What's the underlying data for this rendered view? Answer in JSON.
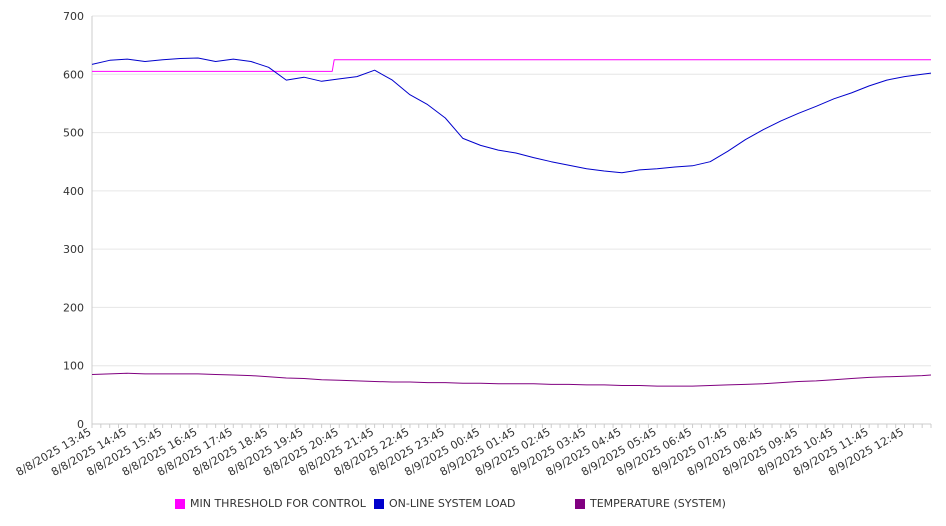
{
  "chart_data": {
    "type": "line",
    "title": "",
    "xlabel": "",
    "ylabel": "",
    "ylim": [
      0,
      700
    ],
    "yticks": [
      0,
      100,
      200,
      300,
      400,
      500,
      600,
      700
    ],
    "grid": true,
    "legend_position": "bottom",
    "x_tick_labels": [
      "8/8/2025 13:45",
      "8/8/2025 14:45",
      "8/8/2025 15:45",
      "8/8/2025 16:45",
      "8/8/2025 17:45",
      "8/8/2025 18:45",
      "8/8/2025 19:45",
      "8/8/2025 20:45",
      "8/8/2025 21:45",
      "8/8/2025 22:45",
      "8/8/2025 23:45",
      "8/9/2025 00:45",
      "8/9/2025 01:45",
      "8/9/2025 02:45",
      "8/9/2025 03:45",
      "8/9/2025 04:45",
      "8/9/2025 05:45",
      "8/9/2025 06:45",
      "8/9/2025 07:45",
      "8/9/2025 08:45",
      "8/9/2025 09:45",
      "8/9/2025 10:45",
      "8/9/2025 11:45",
      "8/9/2025 12:45"
    ],
    "x": [
      "8/8/2025 13:45",
      "8/8/2025 14:15",
      "8/8/2025 14:45",
      "8/8/2025 15:15",
      "8/8/2025 15:45",
      "8/8/2025 16:15",
      "8/8/2025 16:45",
      "8/8/2025 17:15",
      "8/8/2025 17:45",
      "8/8/2025 18:15",
      "8/8/2025 18:45",
      "8/8/2025 19:15",
      "8/8/2025 19:45",
      "8/8/2025 20:15",
      "8/8/2025 20:45",
      "8/8/2025 21:15",
      "8/8/2025 21:45",
      "8/8/2025 22:15",
      "8/8/2025 22:45",
      "8/8/2025 23:15",
      "8/8/2025 23:45",
      "8/9/2025 00:15",
      "8/9/2025 00:45",
      "8/9/2025 01:15",
      "8/9/2025 01:45",
      "8/9/2025 02:15",
      "8/9/2025 02:45",
      "8/9/2025 03:15",
      "8/9/2025 03:45",
      "8/9/2025 04:15",
      "8/9/2025 04:45",
      "8/9/2025 05:15",
      "8/9/2025 05:45",
      "8/9/2025 06:15",
      "8/9/2025 06:45",
      "8/9/2025 07:15",
      "8/9/2025 07:45",
      "8/9/2025 08:15",
      "8/9/2025 08:45",
      "8/9/2025 09:15",
      "8/9/2025 09:45",
      "8/9/2025 10:15",
      "8/9/2025 10:45",
      "8/9/2025 11:15",
      "8/9/2025 11:45",
      "8/9/2025 12:15",
      "8/9/2025 12:45",
      "8/9/2025 13:15",
      "8/9/2025 13:30"
    ],
    "series": [
      {
        "name": "MIN THRESHOLD FOR CONTROL",
        "color": "#ff00ff",
        "values": [
          605,
          605,
          605,
          605,
          605,
          605,
          605,
          605,
          605,
          605,
          605,
          605,
          605,
          605,
          625,
          625,
          625,
          625,
          625,
          625,
          625,
          625,
          625,
          625,
          625,
          625,
          625,
          625,
          625,
          625,
          625,
          625,
          625,
          625,
          625,
          625,
          625,
          625,
          625,
          625,
          625,
          625,
          625,
          625,
          625,
          625,
          625,
          625,
          625
        ]
      },
      {
        "name": "ON-LINE SYSTEM LOAD",
        "color": "#0000cc",
        "values": [
          617,
          624,
          626,
          622,
          625,
          627,
          628,
          622,
          626,
          622,
          612,
          590,
          595,
          588,
          592,
          596,
          607,
          590,
          565,
          548,
          525,
          490,
          478,
          470,
          465,
          457,
          450,
          444,
          438,
          434,
          431,
          436,
          438,
          441,
          443,
          450,
          468,
          488,
          505,
          520,
          533,
          545,
          558,
          568,
          580,
          590,
          596,
          600,
          602
        ]
      },
      {
        "name": "TEMPERATURE (SYSTEM)",
        "color": "#800080",
        "values": [
          85,
          86,
          87,
          86,
          86,
          86,
          86,
          85,
          84,
          83,
          81,
          79,
          78,
          76,
          75,
          74,
          73,
          72,
          72,
          71,
          71,
          70,
          70,
          69,
          69,
          69,
          68,
          68,
          67,
          67,
          66,
          66,
          65,
          65,
          65,
          66,
          67,
          68,
          69,
          71,
          73,
          74,
          76,
          78,
          80,
          81,
          82,
          83,
          84
        ]
      }
    ]
  }
}
